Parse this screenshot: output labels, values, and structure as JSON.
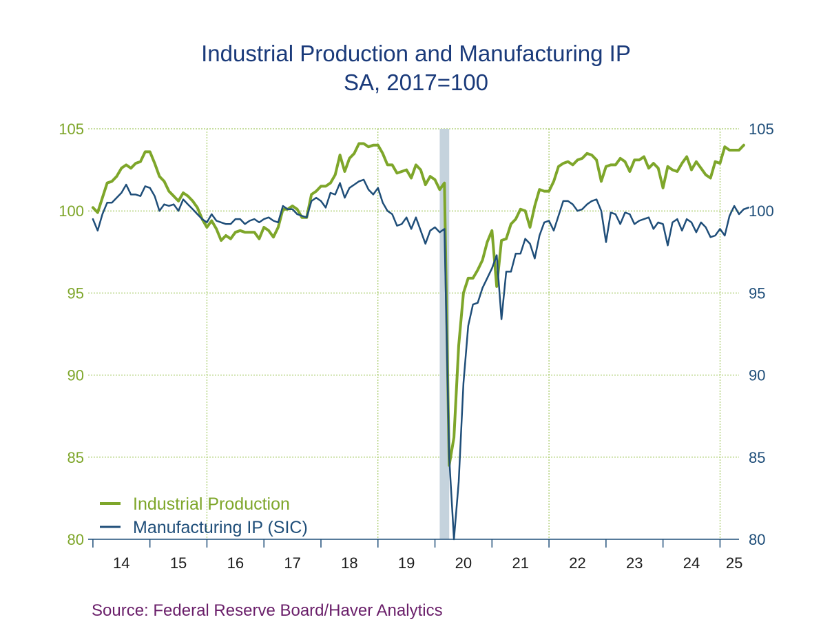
{
  "chart_data": {
    "type": "line",
    "title": "Industrial Production and Manufacturing IP",
    "subtitle": "SA, 2017=100",
    "x_tick_labels": [
      "14",
      "15",
      "16",
      "17",
      "18",
      "19",
      "20",
      "21",
      "22",
      "23",
      "24",
      "25"
    ],
    "y_left_ticks": [
      "105",
      "100",
      "95",
      "90",
      "85",
      "80"
    ],
    "y_right_ticks": [
      "105",
      "100",
      "95",
      "90",
      "85",
      "80"
    ],
    "ylim": [
      80,
      105
    ],
    "x_range": [
      "2013-12",
      "2025-05"
    ],
    "grid": true,
    "recession_band": [
      "2020-02",
      "2020-04"
    ],
    "legend_placement": "bottom-left",
    "series": [
      {
        "name": "Industrial Production",
        "color": "#7ea62a",
        "axis": "left",
        "start": "2014-01",
        "values": [
          100.2,
          99.9,
          100.8,
          101.7,
          101.8,
          102.1,
          102.6,
          102.8,
          102.6,
          102.9,
          103.0,
          103.6,
          103.6,
          102.9,
          102.1,
          101.8,
          101.2,
          100.9,
          100.6,
          101.1,
          100.9,
          100.6,
          100.2,
          99.5,
          99.0,
          99.4,
          98.9,
          98.2,
          98.5,
          98.3,
          98.7,
          98.8,
          98.7,
          98.7,
          98.7,
          98.3,
          99.0,
          98.8,
          98.4,
          99.0,
          100.1,
          100.1,
          100.3,
          100.1,
          99.6,
          99.6,
          101.0,
          101.2,
          101.5,
          101.5,
          101.7,
          102.2,
          103.4,
          102.4,
          103.2,
          103.5,
          104.1,
          104.1,
          103.9,
          104.0,
          104.0,
          103.5,
          102.8,
          102.8,
          102.3,
          102.4,
          102.5,
          102.0,
          102.8,
          102.5,
          101.6,
          102.1,
          101.9,
          101.3,
          101.7,
          84.5,
          86.2,
          91.8,
          95.0,
          95.9,
          95.9,
          96.4,
          97.0,
          98.1,
          98.8,
          95.4,
          98.2,
          98.3,
          99.2,
          99.5,
          100.1,
          100.0,
          99.0,
          100.3,
          101.3,
          101.2,
          101.2,
          101.8,
          102.7,
          102.9,
          103.0,
          102.8,
          103.1,
          103.2,
          103.5,
          103.4,
          103.1,
          101.8,
          102.7,
          102.8,
          102.8,
          103.2,
          103.0,
          102.4,
          103.1,
          103.1,
          103.3,
          102.6,
          102.9,
          102.6,
          101.4,
          102.7,
          102.5,
          102.4,
          102.9,
          103.3,
          102.5,
          103.0,
          102.6,
          102.2,
          102.0,
          103.0,
          102.9,
          103.9,
          103.7,
          103.7,
          103.7,
          104.0
        ]
      },
      {
        "name": "Manufacturing IP (SIC)",
        "color": "#1f4e79",
        "axis": "right",
        "start": "2014-01",
        "values": [
          99.5,
          98.8,
          99.8,
          100.5,
          100.5,
          100.8,
          101.1,
          101.6,
          101.0,
          101.0,
          100.9,
          101.5,
          101.4,
          100.9,
          100.0,
          100.4,
          100.3,
          100.4,
          100.0,
          100.7,
          100.4,
          100.1,
          99.8,
          99.5,
          99.3,
          99.8,
          99.4,
          99.3,
          99.2,
          99.2,
          99.5,
          99.5,
          99.2,
          99.4,
          99.5,
          99.3,
          99.5,
          99.6,
          99.4,
          99.3,
          100.3,
          100.1,
          100.1,
          99.8,
          99.7,
          99.6,
          100.6,
          100.8,
          100.6,
          100.2,
          101.1,
          101.0,
          101.7,
          100.8,
          101.4,
          101.6,
          101.8,
          101.9,
          101.3,
          101.0,
          101.4,
          100.5,
          100.0,
          99.8,
          99.1,
          99.2,
          99.6,
          98.9,
          99.6,
          98.8,
          98.0,
          98.8,
          99.0,
          98.7,
          98.9,
          85.0,
          80.0,
          83.5,
          89.5,
          93.0,
          94.3,
          94.4,
          95.3,
          95.9,
          96.5,
          97.3,
          93.4,
          96.3,
          96.3,
          97.4,
          97.4,
          98.3,
          98.0,
          97.1,
          98.5,
          99.3,
          99.4,
          98.8,
          99.7,
          100.6,
          100.6,
          100.4,
          100.0,
          100.1,
          100.4,
          100.6,
          100.7,
          100.0,
          98.1,
          99.9,
          99.8,
          99.2,
          99.9,
          99.8,
          99.2,
          99.4,
          99.5,
          99.6,
          98.9,
          99.3,
          99.2,
          97.9,
          99.3,
          99.5,
          98.8,
          99.5,
          99.3,
          98.7,
          99.3,
          99.0,
          98.4,
          98.5,
          98.9,
          98.5,
          99.7,
          100.3,
          99.8,
          100.1,
          100.2
        ]
      }
    ]
  },
  "source": "Source:  Federal Reserve Board/Haver Analytics"
}
